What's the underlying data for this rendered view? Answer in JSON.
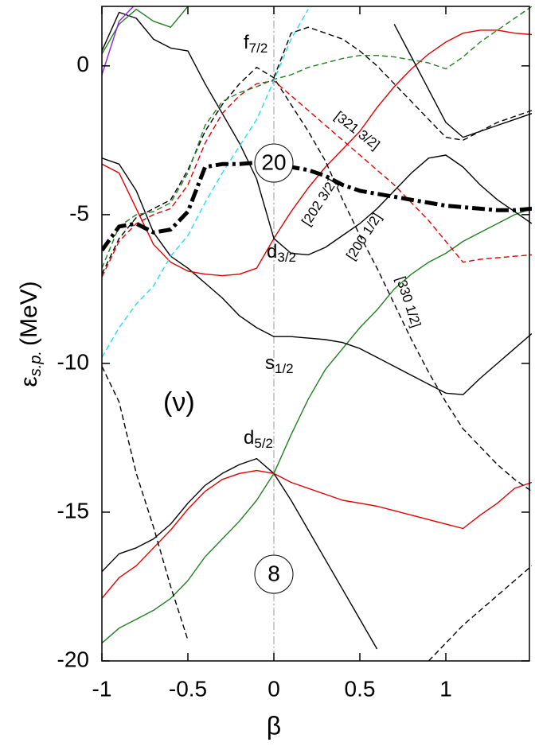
{
  "chart_data": {
    "type": "line",
    "xlabel": "β",
    "ylabel": {
      "main": "ε",
      "sub": "s.p.",
      "unit": "(MeV)"
    },
    "xlim": [
      -1,
      1.5
    ],
    "ylim": [
      -20,
      2
    ],
    "xticks": [
      -1,
      -0.5,
      0,
      0.5,
      1
    ],
    "yticks": [
      -20,
      -15,
      -10,
      -5,
      0
    ],
    "vline": 0,
    "annotations": [
      {
        "text": "f",
        "sub": "7/2"
      },
      {
        "text": "d",
        "sub": "3/2"
      },
      {
        "text": "s",
        "sub": "1/2"
      },
      {
        "text": "d",
        "sub": "5/2"
      },
      {
        "text": "(ν)"
      }
    ],
    "shell_gaps": [
      "20",
      "8"
    ],
    "orbit_labels": [
      "[321 3/2]",
      "[202 3/2]",
      "[200 1/2]",
      "[330 1/2]"
    ],
    "x": [
      -1,
      -0.9,
      -0.8,
      -0.7,
      -0.6,
      -0.5,
      -0.4,
      -0.3,
      -0.2,
      -0.1,
      0,
      0.1,
      0.2,
      0.3,
      0.4,
      0.5,
      0.6,
      0.7,
      0.8,
      0.9,
      1,
      1.1,
      1.2,
      1.3,
      1.4,
      1.5
    ],
    "series": [
      {
        "color": "#000000",
        "style": "solid",
        "values": [
          -17,
          -16.4,
          -16.2,
          -15.9,
          -15.4,
          -14.7,
          -14.1,
          -13.7,
          -13.4,
          -13.2,
          -13.7,
          -14.6,
          -15.6,
          -16.6,
          -17.6,
          -18.6,
          -19.6,
          null,
          null,
          null,
          null,
          null,
          null,
          null,
          null,
          null
        ]
      },
      {
        "color": "#e00000",
        "style": "solid",
        "values": [
          -17.9,
          -17.2,
          -16.8,
          -16.2,
          -15.6,
          -14.9,
          -14.3,
          -13.9,
          -13.7,
          -13.6,
          -13.7,
          -14.0,
          -14.2,
          -14.4,
          -14.6,
          -14.7,
          -14.8,
          -14.95,
          -15.1,
          -15.25,
          -15.4,
          -15.55,
          -15.1,
          -14.7,
          -14.2,
          -14.0
        ]
      },
      {
        "color": "#208020",
        "style": "solid",
        "values": [
          -19.4,
          -18.9,
          -18.6,
          -18.3,
          -17.9,
          -17.3,
          -16.5,
          -15.9,
          -15.3,
          -14.6,
          -13.7,
          -12.4,
          -11.2,
          -10.2,
          -9.5,
          -8.8,
          -8.2,
          -7.5,
          -7.0,
          -6.6,
          -6.3,
          -5.9,
          -5.6,
          -5.3,
          -5.0,
          -4.8
        ]
      },
      {
        "color": "#000000",
        "style": "solid",
        "values": [
          -3.1,
          -3.3,
          -4.2,
          -5.6,
          -6.4,
          -6.8,
          -7.3,
          -7.8,
          -8.4,
          -8.8,
          -9.1,
          -9.1,
          -9.15,
          -9.2,
          -9.3,
          -9.5,
          -9.8,
          -10.1,
          -10.4,
          -10.7,
          -11.0,
          -11.05,
          -10.5,
          -10.0,
          -9.5,
          -9.0
        ]
      },
      {
        "color": "#e00000",
        "style": "solid",
        "values": [
          -3.3,
          -3.6,
          -4.8,
          -6.0,
          -6.6,
          -6.9,
          -7.0,
          -7.05,
          -7.0,
          -6.8,
          -5.8,
          -4.9,
          -4.1,
          -3.4,
          -2.8,
          -2.2,
          -1.4,
          -0.7,
          -0.1,
          0.4,
          0.8,
          1.1,
          1.2,
          1.2,
          1.1,
          1.05
        ]
      },
      {
        "color": "#000000",
        "style": "solid",
        "values": [
          0.5,
          1.8,
          1.6,
          0.9,
          0.6,
          0.5,
          -0.6,
          -1.6,
          -2.6,
          -3.8,
          -5.8,
          -6.3,
          -6.35,
          -6.1,
          -5.7,
          -5.3,
          -4.8,
          -4.2,
          -3.6,
          -3.1,
          -3.0,
          -3.4,
          -4.0,
          -4.5,
          -4.9,
          -5.3
        ]
      },
      {
        "color": "#000000",
        "style": "dashed",
        "values": [
          -7.0,
          -5.8,
          -5.1,
          -4.8,
          -4.5,
          -3.5,
          -2.2,
          -1.3,
          -0.6,
          -0.05,
          -0.4,
          -1.3,
          -2.2,
          -3.2,
          -4.5,
          -5.7,
          -6.8,
          -8.0,
          -9.2,
          -10.3,
          -11.3,
          -12.2,
          -12.8,
          -13.4,
          -13.9,
          -14.3
        ]
      },
      {
        "color": "#e00000",
        "style": "dashed",
        "values": [
          -7.1,
          -5.9,
          -5.3,
          -5.0,
          -4.8,
          -4.0,
          -2.6,
          -1.6,
          -1.0,
          -0.6,
          -0.5,
          -1.0,
          -1.5,
          -2.0,
          -2.5,
          -3.0,
          -3.5,
          -4.0,
          -4.6,
          -5.2,
          -5.9,
          -6.6,
          -6.5,
          -6.45,
          -6.4,
          -6.35
        ]
      },
      {
        "color": "#208020",
        "style": "dashed",
        "values": [
          -6.8,
          -5.4,
          -5.0,
          -4.9,
          -4.6,
          -3.6,
          -2.0,
          -1.2,
          -0.9,
          -0.7,
          -0.45,
          -0.3,
          -0.05,
          0.1,
          0.25,
          0.35,
          0.35,
          0.3,
          0.2,
          0.1,
          -0.1,
          0.3,
          0.8,
          1.2,
          1.6,
          2.0
        ]
      },
      {
        "color": "#20e0f0",
        "style": "dashed",
        "values": [
          -9.8,
          -8.8,
          -8.0,
          -7.4,
          -6.4,
          -5.7,
          -4.6,
          -3.6,
          -2.7,
          -1.8,
          -0.5,
          0.9,
          1.9,
          null,
          null,
          null,
          null,
          null,
          null,
          null,
          null,
          null,
          null,
          null,
          null,
          null
        ]
      },
      {
        "color": "#000000",
        "style": "dashed",
        "values": [
          null,
          null,
          null,
          null,
          null,
          null,
          null,
          null,
          null,
          null,
          -0.4,
          1.1,
          1.3,
          1.1,
          0.9,
          0.5,
          0.0,
          -0.6,
          -1.2,
          -1.8,
          -2.4,
          -2.5,
          -2.2,
          -1.9,
          -1.7,
          -1.5
        ]
      },
      {
        "color": "#000000",
        "style": "solid",
        "values": [
          null,
          null,
          null,
          null,
          null,
          null,
          null,
          null,
          null,
          null,
          null,
          null,
          null,
          null,
          null,
          null,
          null,
          1.4,
          0.3,
          -0.8,
          -1.9,
          -2.4,
          -2.2,
          -2.0,
          -1.8,
          -1.6
        ]
      },
      {
        "color": "#000000",
        "style": "dashed",
        "values": [
          -10.1,
          -11.3,
          -13.7,
          -15.5,
          -17.5,
          -19.3,
          null,
          null,
          null,
          null,
          null,
          null,
          null,
          null,
          null,
          null,
          null,
          null,
          null,
          null,
          null,
          null,
          null,
          null,
          null,
          null
        ]
      },
      {
        "color": "#000000",
        "style": "dashed",
        "values": [
          null,
          null,
          null,
          null,
          null,
          null,
          null,
          null,
          null,
          null,
          null,
          null,
          null,
          null,
          null,
          null,
          null,
          null,
          null,
          -20,
          -19.4,
          -18.8,
          -18.3,
          -17.8,
          -17.3,
          -16.8
        ]
      },
      {
        "color": "#208020",
        "style": "solid",
        "values": [
          0.4,
          1.4,
          1.9,
          1.5,
          1.3,
          2.0,
          null,
          null,
          null,
          null,
          null,
          null,
          null,
          null,
          null,
          null,
          null,
          null,
          null,
          null,
          null,
          null,
          null,
          null,
          null,
          null
        ]
      },
      {
        "color": "#9020e0",
        "style": "solid",
        "values": [
          -0.3,
          1.5,
          2.1,
          null,
          null,
          null,
          null,
          null,
          null,
          null,
          null,
          null,
          null,
          null,
          null,
          null,
          null,
          null,
          null,
          null,
          null,
          null,
          null,
          null,
          null,
          null
        ]
      },
      {
        "color": "#000000",
        "style": "dashdot",
        "thick": true,
        "values": [
          -6.2,
          -5.4,
          -5.3,
          -5.6,
          -5.5,
          -4.9,
          -3.4,
          -3.3,
          -3.3,
          -3.25,
          -3.3,
          -3.4,
          -3.5,
          -3.7,
          -4.0,
          -4.2,
          -4.3,
          -4.4,
          -4.5,
          -4.6,
          -4.7,
          -4.75,
          -4.8,
          -4.85,
          -4.85,
          -4.8
        ]
      }
    ]
  }
}
